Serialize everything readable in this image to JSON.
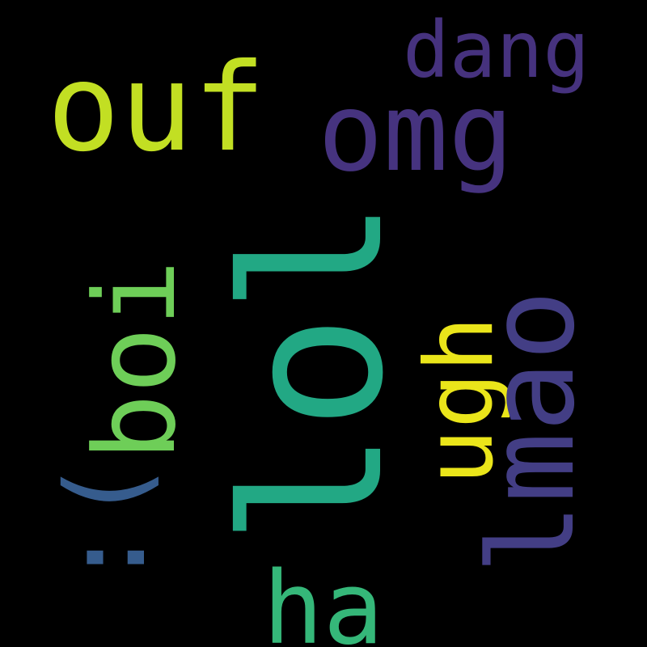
{
  "background_color": "#000000",
  "words": [
    {
      "id": "ouf",
      "text": "ouf",
      "color": "#C2DF23"
    },
    {
      "id": "dang",
      "text": "dang",
      "color": "#46327E"
    },
    {
      "id": "omg",
      "text": "omg",
      "color": "#46337F"
    },
    {
      "id": "boi",
      "text": "boi",
      "color": "#6ECE58"
    },
    {
      "id": "lol",
      "text": "lol",
      "color": "#22A884"
    },
    {
      "id": "ugh",
      "text": "ugh",
      "color": "#EAE51A"
    },
    {
      "id": "lmao",
      "text": "lmao",
      "color": "#433E85"
    },
    {
      "id": "sad",
      "text": ":(",
      "color": "#365C8D"
    },
    {
      "id": "ha",
      "text": "ha",
      "color": "#35B779"
    }
  ]
}
